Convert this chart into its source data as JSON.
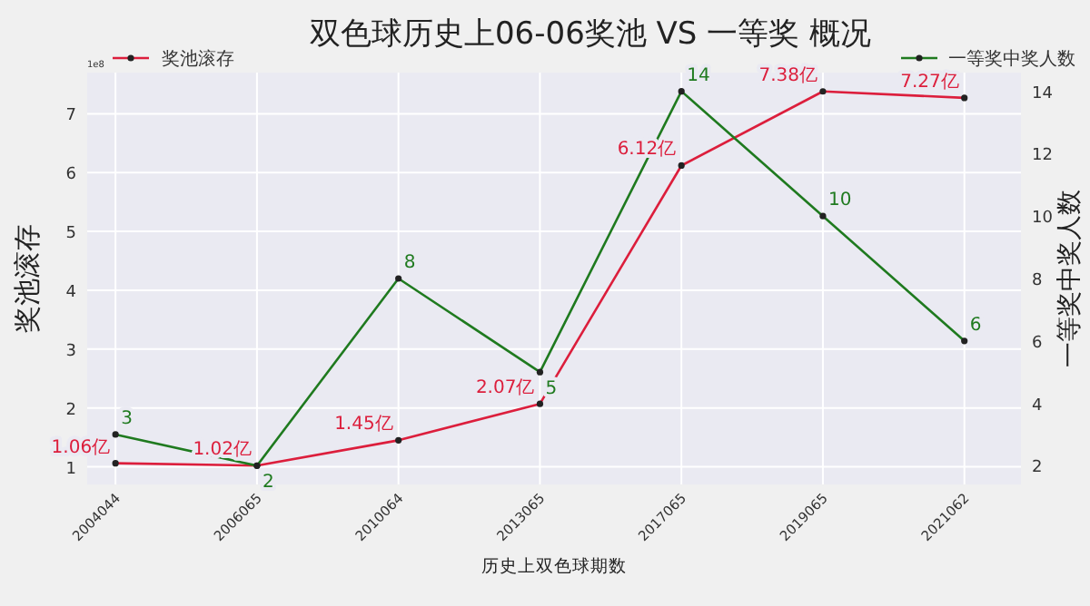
{
  "chart_data": {
    "type": "line",
    "title": "双色球历史上06-06奖池 VS 一等奖 概况",
    "xlabel": "历史上双色球期数",
    "ylabel": "奖池滚存",
    "y2label": "一等奖中奖人数",
    "categories": [
      "2004044",
      "2006065",
      "2010064",
      "2013065",
      "2017065",
      "2019065",
      "2021062"
    ],
    "series": [
      {
        "name": "奖池滚存",
        "color": "#dc1e3c",
        "values": [
          1.06,
          1.02,
          1.45,
          2.07,
          6.12,
          7.38,
          7.27
        ],
        "value_labels": [
          "1.06亿",
          "1.02亿",
          "1.45亿",
          "2.07亿",
          "6.12亿",
          "7.38亿",
          "7.27亿"
        ]
      },
      {
        "name": "一等奖中奖人数",
        "color": "#1f7a1f",
        "axis": "y2",
        "values": [
          3,
          2,
          8,
          5,
          14,
          10,
          6
        ],
        "value_labels": [
          "3",
          "2",
          "8",
          "5",
          "14",
          "10",
          "6"
        ]
      }
    ],
    "ylim": [
      0.7,
      7.7
    ],
    "yticks": [
      1,
      2,
      3,
      4,
      5,
      6,
      7
    ],
    "y2lim": [
      1.4,
      14.6
    ],
    "y2ticks": [
      2,
      4,
      6,
      8,
      10,
      12,
      14
    ],
    "annotations": [
      "1e8"
    ],
    "grid": true,
    "legend": "top",
    "marker": "circle",
    "line_style": "solid"
  }
}
